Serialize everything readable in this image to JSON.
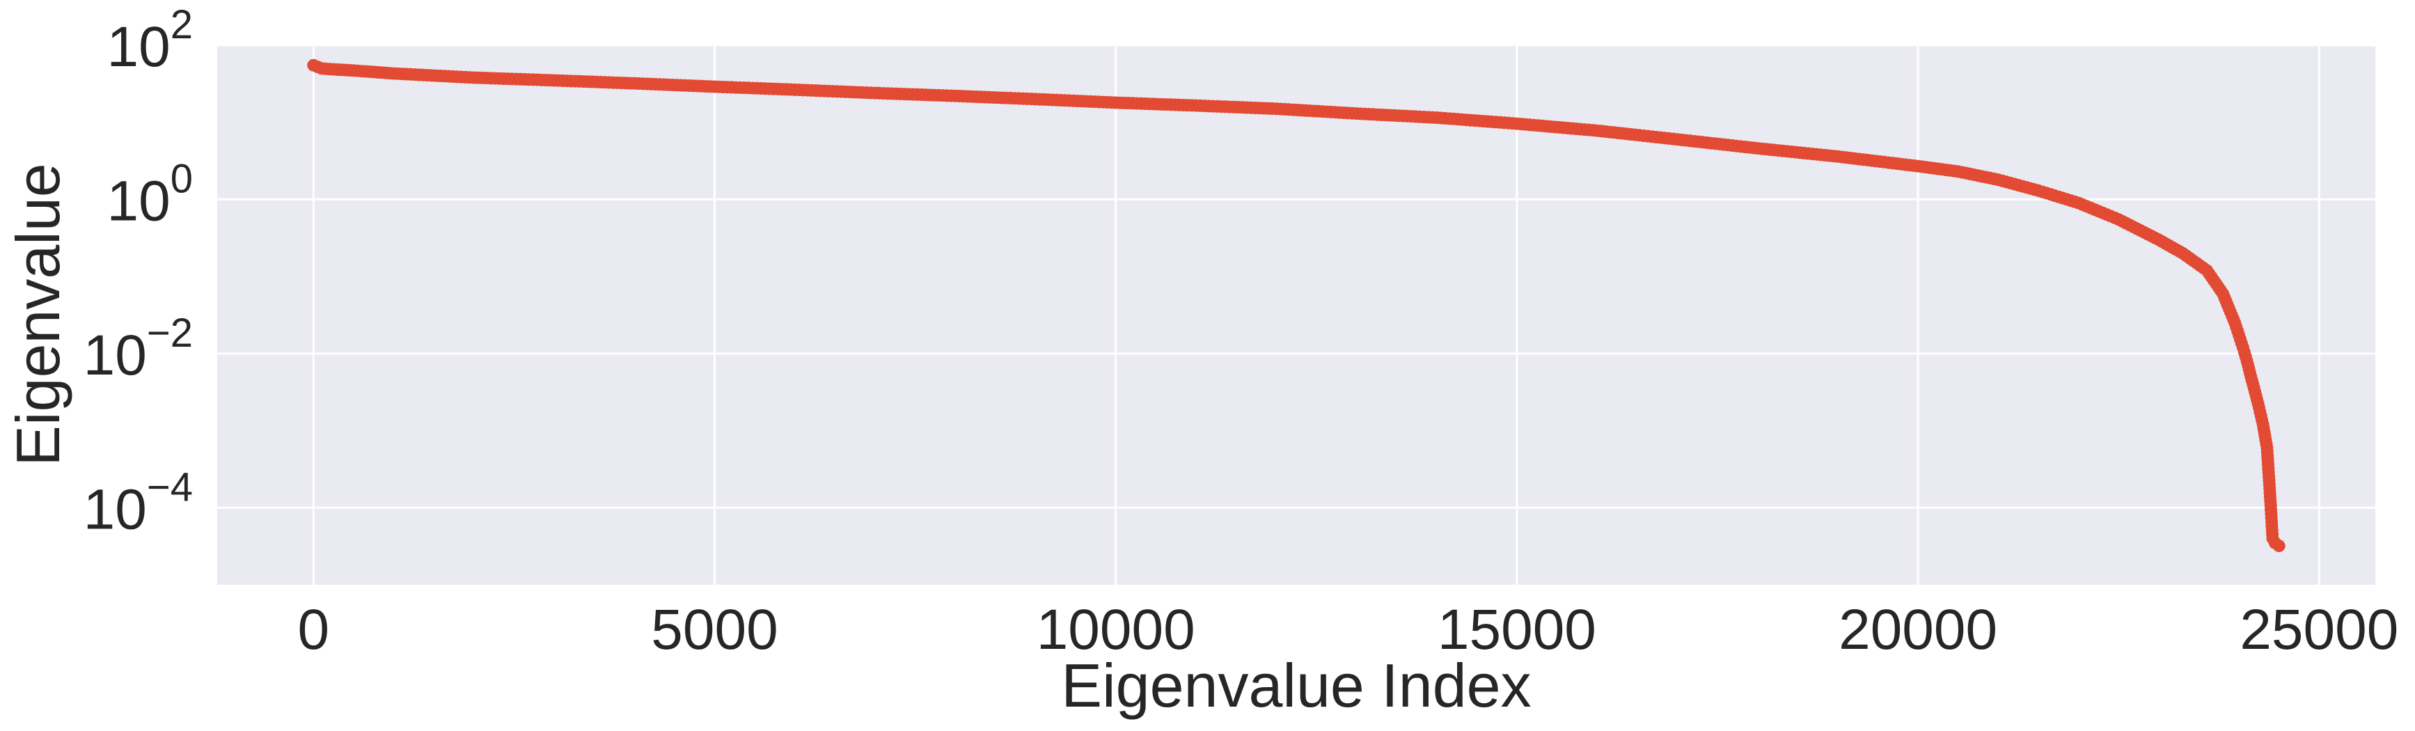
{
  "chart_data": {
    "type": "line",
    "title": "",
    "xlabel": "Eigenvalue Index",
    "ylabel": "Eigenvalue",
    "y_scale": "log",
    "xlim": [
      -1200,
      25700
    ],
    "ylim": [
      1e-05,
      100
    ],
    "x_ticks": [
      0,
      5000,
      10000,
      15000,
      20000,
      25000
    ],
    "x_tick_labels": [
      "0",
      "5000",
      "10000",
      "15000",
      "20000",
      "25000"
    ],
    "y_ticks": [
      100,
      1,
      0.01,
      0.0001
    ],
    "y_tick_labels": [
      {
        "base": "10",
        "exp": "2"
      },
      {
        "base": "10",
        "exp": "0"
      },
      {
        "base": "10",
        "exp": "−2"
      },
      {
        "base": "10",
        "exp": "−4"
      }
    ],
    "grid": true,
    "background_color": "#eaeaf2",
    "grid_color": "#ffffff",
    "series": [
      {
        "color": "#e24a33",
        "marker": "circle",
        "x": [
          0,
          100,
          200,
          500,
          1000,
          2000,
          3000,
          4000,
          5000,
          6000,
          7000,
          8000,
          9000,
          10000,
          11000,
          12000,
          13000,
          14000,
          15000,
          16000,
          17000,
          18000,
          19000,
          20000,
          20500,
          21000,
          21500,
          22000,
          22500,
          23000,
          23300,
          23600,
          23800,
          23950,
          24050,
          24100,
          24150,
          24200,
          24250,
          24300,
          24350,
          24380,
          24420,
          24450,
          24500
        ],
        "y": [
          55,
          50,
          49,
          47,
          43,
          38,
          35,
          32,
          29,
          26.5,
          24,
          22,
          20,
          18,
          16.5,
          15,
          13,
          11.5,
          9.6,
          7.8,
          6.0,
          4.6,
          3.6,
          2.7,
          2.3,
          1.8,
          1.3,
          0.9,
          0.55,
          0.3,
          0.2,
          0.12,
          0.06,
          0.025,
          0.012,
          0.008,
          0.005,
          0.0032,
          0.002,
          0.0012,
          0.0006,
          0.0002,
          4e-05,
          3.5e-05,
          3.2e-05
        ]
      }
    ]
  }
}
